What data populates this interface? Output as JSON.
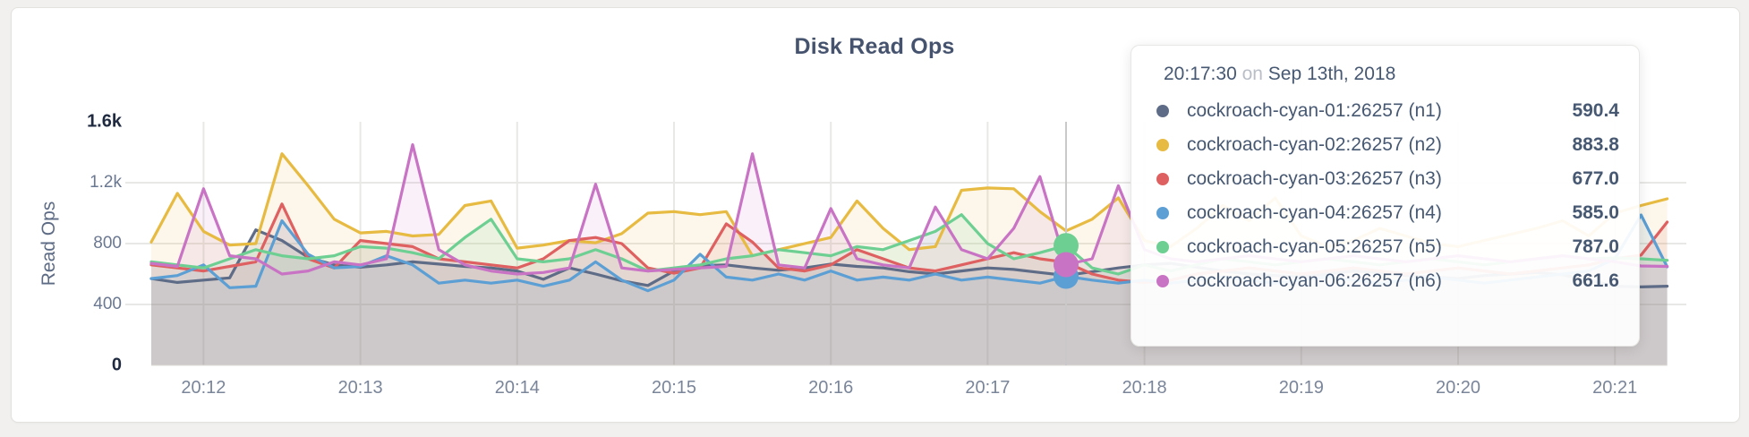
{
  "page": {
    "background": "#f1f0ee",
    "card_background": "#ffffff"
  },
  "header": {
    "title": "Disk Read Ops"
  },
  "y_axis": {
    "label": "Read Ops",
    "ticks": [
      {
        "value": 0,
        "label": "0",
        "emphasis": true
      },
      {
        "value": 400,
        "label": "400",
        "emphasis": false
      },
      {
        "value": 800,
        "label": "800",
        "emphasis": false
      },
      {
        "value": 1200,
        "label": "1.2k",
        "emphasis": false
      },
      {
        "value": 1600,
        "label": "1.6k",
        "emphasis": true
      }
    ]
  },
  "x_axis": {
    "tick_labels": [
      "20:12",
      "20:13",
      "20:14",
      "20:15",
      "20:16",
      "20:17",
      "20:18",
      "20:19",
      "20:20",
      "20:21"
    ]
  },
  "tooltip": {
    "time": "20:17:30",
    "conjunction": "on",
    "date": "Sep 13th, 2018",
    "rows": [
      {
        "node": "n1",
        "name": "cockroach-cyan-01:26257 (n1)",
        "value": "590.4"
      },
      {
        "node": "n2",
        "name": "cockroach-cyan-02:26257 (n2)",
        "value": "883.8"
      },
      {
        "node": "n3",
        "name": "cockroach-cyan-03:26257 (n3)",
        "value": "677.0"
      },
      {
        "node": "n4",
        "name": "cockroach-cyan-04:26257 (n4)",
        "value": "585.0"
      },
      {
        "node": "n5",
        "name": "cockroach-cyan-05:26257 (n5)",
        "value": "787.0"
      },
      {
        "node": "n6",
        "name": "cockroach-cyan-06:26257 (n6)",
        "value": "661.6"
      }
    ]
  },
  "chart_data": {
    "type": "line",
    "title": "Disk Read Ops",
    "xlabel": "",
    "ylabel": "Read Ops",
    "ylim": [
      0,
      1600
    ],
    "grid": true,
    "x_start": "20:11:40",
    "x_end": "20:21:20",
    "x_interval_seconds": 10,
    "x_tick_labels": [
      "20:12",
      "20:13",
      "20:14",
      "20:15",
      "20:16",
      "20:17",
      "20:18",
      "20:19",
      "20:20",
      "20:21"
    ],
    "hover": {
      "time": "20:17:30",
      "visible_dots": [
        "n4",
        "n5",
        "n6"
      ]
    },
    "series": [
      {
        "id": "n1",
        "name": "cockroach-cyan-01:26257 (n1)",
        "color": "#5F6C87",
        "values": [
          570,
          545,
          560,
          575,
          890,
          820,
          710,
          660,
          645,
          660,
          680,
          665,
          650,
          640,
          620,
          565,
          640,
          600,
          555,
          525,
          620,
          655,
          660,
          640,
          625,
          640,
          665,
          650,
          640,
          615,
          600,
          620,
          640,
          630,
          610,
          590.4,
          615,
          640,
          660,
          670,
          645,
          620,
          600,
          590,
          580,
          600,
          620,
          610,
          590,
          580,
          570,
          590,
          600,
          610,
          595,
          560,
          520,
          515,
          520
        ]
      },
      {
        "id": "n2",
        "name": "cockroach-cyan-02:26257 (n2)",
        "color": "#E7BA41",
        "values": [
          810,
          1130,
          880,
          790,
          800,
          1390,
          1180,
          960,
          870,
          880,
          850,
          860,
          1050,
          1080,
          770,
          790,
          820,
          805,
          865,
          1000,
          1010,
          990,
          1010,
          720,
          760,
          800,
          840,
          1080,
          900,
          760,
          780,
          1150,
          1165,
          1160,
          1010,
          883.8,
          960,
          1100,
          820,
          780,
          900,
          1050,
          950,
          1100,
          850,
          780,
          820,
          900,
          850,
          800,
          780,
          820,
          860,
          900,
          950,
          850,
          1000,
          1050,
          1094
        ]
      },
      {
        "id": "n3",
        "name": "cockroach-cyan-03:26257 (n3)",
        "color": "#DE6060",
        "values": [
          660,
          640,
          620,
          650,
          680,
          1060,
          700,
          640,
          820,
          800,
          780,
          700,
          680,
          660,
          640,
          700,
          820,
          840,
          800,
          640,
          605,
          640,
          930,
          810,
          640,
          620,
          660,
          760,
          700,
          640,
          620,
          660,
          700,
          740,
          700,
          677,
          600,
          560,
          545,
          560,
          600,
          620,
          640,
          620,
          600,
          620,
          640,
          620,
          600,
          620,
          640,
          620,
          600,
          620,
          640,
          660,
          700,
          724,
          941
        ]
      },
      {
        "id": "n4",
        "name": "cockroach-cyan-04:26257 (n4)",
        "color": "#5C9FD4",
        "values": [
          570,
          590,
          660,
          510,
          520,
          950,
          730,
          640,
          650,
          720,
          660,
          540,
          560,
          540,
          560,
          520,
          560,
          680,
          560,
          490,
          560,
          730,
          580,
          560,
          600,
          560,
          620,
          560,
          580,
          560,
          600,
          560,
          580,
          560,
          540,
          585,
          560,
          540,
          560,
          540,
          560,
          580,
          560,
          540,
          560,
          580,
          560,
          540,
          560,
          580,
          560,
          540,
          560,
          580,
          600,
          620,
          700,
          988,
          647
        ]
      },
      {
        "id": "n5",
        "name": "cockroach-cyan-05:26257 (n5)",
        "color": "#6ECF93",
        "values": [
          680,
          660,
          640,
          700,
          760,
          720,
          700,
          720,
          780,
          770,
          740,
          700,
          840,
          960,
          700,
          680,
          700,
          760,
          700,
          620,
          640,
          660,
          700,
          720,
          760,
          740,
          720,
          780,
          760,
          820,
          880,
          990,
          800,
          700,
          740,
          787,
          640,
          600,
          660,
          620,
          660,
          700,
          680,
          660,
          680,
          700,
          680,
          660,
          680,
          700,
          680,
          660,
          680,
          700,
          720,
          700,
          706,
          700,
          690
        ]
      },
      {
        "id": "n6",
        "name": "cockroach-cyan-06:26257 (n6)",
        "color": "#C973C5",
        "values": [
          670,
          650,
          1160,
          720,
          700,
          600,
          620,
          680,
          660,
          700,
          1450,
          760,
          660,
          620,
          600,
          610,
          640,
          1190,
          640,
          620,
          630,
          640,
          650,
          1390,
          660,
          640,
          1030,
          700,
          660,
          640,
          1040,
          760,
          700,
          900,
          1240,
          661.6,
          700,
          1180,
          760,
          700,
          680,
          700,
          720,
          700,
          680,
          700,
          720,
          700,
          680,
          700,
          720,
          700,
          680,
          700,
          720,
          700,
          680,
          653,
          650
        ]
      }
    ]
  }
}
